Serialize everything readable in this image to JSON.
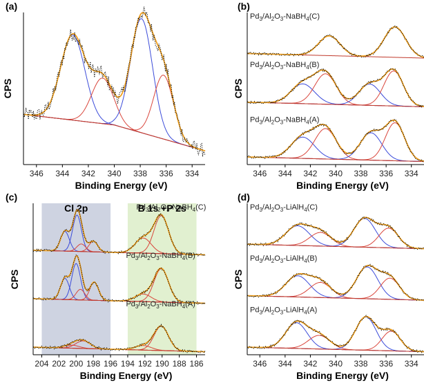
{
  "colors": {
    "data": "#000000",
    "envelope": "#f0a020",
    "baseline": "#c0392b",
    "peak_blue": "#3b4bd9",
    "peak_red": "#d9453b",
    "cl_region": "#c5cbdc",
    "bp_region": "#dcedc8"
  },
  "chart_data": [
    {
      "panel": "(a)",
      "type": "line",
      "xlabel": "Binding Energy (eV)",
      "ylabel": "CPS",
      "xlim": [
        347,
        333
      ],
      "xticks": [
        346,
        344,
        342,
        340,
        338,
        336,
        334
      ],
      "offset": 0,
      "baseline": [
        [
          347,
          0.33
        ],
        [
          340,
          0.26
        ],
        [
          333,
          0.09
        ]
      ],
      "peaks": [
        {
          "center": 343.2,
          "height": 0.56,
          "fwhm": 2.2,
          "color": "blue"
        },
        {
          "center": 340.9,
          "height": 0.3,
          "fwhm": 2.0,
          "color": "red"
        },
        {
          "center": 337.9,
          "height": 0.75,
          "fwhm": 2.0,
          "color": "blue"
        },
        {
          "center": 336.2,
          "height": 0.42,
          "fwhm": 1.8,
          "color": "red"
        }
      ]
    },
    {
      "panel": "(b)",
      "type": "line",
      "xlabel": "Binding Energy (eV)",
      "ylabel": "CPS",
      "xlim": [
        347,
        333
      ],
      "xticks": [
        346,
        344,
        342,
        340,
        338,
        336,
        334
      ],
      "series": [
        {
          "name": "Pd3/Al2O3-NaBH4(C)",
          "offset": 0.7,
          "peaks": [
            {
              "center": 340.5,
              "height": 0.13,
              "fwhm": 2.0,
              "color": "none"
            },
            {
              "center": 335.3,
              "height": 0.2,
              "fwhm": 2.0,
              "color": "none"
            }
          ]
        },
        {
          "name": "Pd3/Al2O3-NaBH4(B)",
          "offset": 0.38,
          "peaks": [
            {
              "center": 342.6,
              "height": 0.13,
              "fwhm": 2.2,
              "color": "blue"
            },
            {
              "center": 340.8,
              "height": 0.2,
              "fwhm": 2.0,
              "color": "red"
            },
            {
              "center": 337.3,
              "height": 0.14,
              "fwhm": 2.0,
              "color": "blue"
            },
            {
              "center": 335.4,
              "height": 0.23,
              "fwhm": 1.8,
              "color": "red"
            }
          ]
        },
        {
          "name": "Pd3/Al2O3-NaBH4(A)",
          "offset": 0.02,
          "peaks": [
            {
              "center": 342.6,
              "height": 0.14,
              "fwhm": 2.2,
              "color": "blue"
            },
            {
              "center": 340.8,
              "height": 0.2,
              "fwhm": 2.0,
              "color": "red"
            },
            {
              "center": 337.2,
              "height": 0.18,
              "fwhm": 2.0,
              "color": "blue"
            },
            {
              "center": 335.3,
              "height": 0.25,
              "fwhm": 1.8,
              "color": "red"
            }
          ]
        }
      ]
    },
    {
      "panel": "(c)",
      "type": "line",
      "xlabel": "Binding Energy (eV)",
      "ylabel": "CPS",
      "xlim": [
        205,
        185
      ],
      "xticks": [
        204,
        202,
        200,
        198,
        196,
        194,
        192,
        190,
        188,
        186
      ],
      "regions": [
        {
          "label": "Cl 2p",
          "from": 204,
          "to": 196,
          "color": "cl_region"
        },
        {
          "label": "B 1s +P 2s",
          "from": 194,
          "to": 186,
          "color": "bp_region"
        }
      ],
      "series": [
        {
          "name": "Pd3/Al2O3-NaBH4(C)",
          "offset": 0.66,
          "peaks": [
            {
              "center": 201.3,
              "height": 0.13,
              "fwhm": 1.2,
              "color": "blue"
            },
            {
              "center": 199.9,
              "height": 0.24,
              "fwhm": 1.2,
              "color": "blue"
            },
            {
              "center": 199.4,
              "height": 0.05,
              "fwhm": 1.2,
              "color": "red"
            },
            {
              "center": 198.0,
              "height": 0.07,
              "fwhm": 1.2,
              "color": "red"
            },
            {
              "center": 192.2,
              "height": 0.1,
              "fwhm": 2.2,
              "color": "red"
            },
            {
              "center": 190.1,
              "height": 0.25,
              "fwhm": 2.0,
              "color": "red"
            }
          ]
        },
        {
          "name": "Pd3/Al2O3-NaBH4(B)",
          "offset": 0.34,
          "peaks": [
            {
              "center": 201.3,
              "height": 0.14,
              "fwhm": 1.2,
              "color": "blue"
            },
            {
              "center": 200.0,
              "height": 0.24,
              "fwhm": 1.2,
              "color": "blue"
            },
            {
              "center": 199.5,
              "height": 0.07,
              "fwhm": 1.2,
              "color": "red"
            },
            {
              "center": 197.9,
              "height": 0.12,
              "fwhm": 1.2,
              "color": "red"
            },
            {
              "center": 192.2,
              "height": 0.05,
              "fwhm": 2.2,
              "color": "red"
            },
            {
              "center": 190.1,
              "height": 0.22,
              "fwhm": 2.0,
              "color": "red"
            }
          ]
        },
        {
          "name": "Pd3/Al2O3-NaBH4(A)",
          "offset": 0.02,
          "peaks": [
            {
              "center": 200.5,
              "height": 0.02,
              "fwhm": 2.0,
              "color": "red"
            },
            {
              "center": 199.2,
              "height": 0.05,
              "fwhm": 2.0,
              "color": "red"
            },
            {
              "center": 192.2,
              "height": 0.03,
              "fwhm": 2.2,
              "color": "red"
            },
            {
              "center": 190.1,
              "height": 0.16,
              "fwhm": 2.0,
              "color": "red"
            }
          ]
        }
      ]
    },
    {
      "panel": "(d)",
      "type": "line",
      "xlabel": "Binding Energy (eV)",
      "ylabel": "CPS",
      "xlim": [
        347,
        333
      ],
      "xticks": [
        346,
        344,
        342,
        340,
        338,
        336,
        334
      ],
      "series": [
        {
          "name": "Pd3/Al2O3-LiAlH4(C)",
          "offset": 0.7,
          "peaks": [
            {
              "center": 343.0,
              "height": 0.13,
              "fwhm": 2.2,
              "color": "blue"
            },
            {
              "center": 341.2,
              "height": 0.09,
              "fwhm": 2.0,
              "color": "red"
            },
            {
              "center": 337.7,
              "height": 0.19,
              "fwhm": 2.0,
              "color": "blue"
            },
            {
              "center": 335.8,
              "height": 0.13,
              "fwhm": 1.8,
              "color": "red"
            }
          ]
        },
        {
          "name": "Pd3/Al2O3-LiAlH4(B)",
          "offset": 0.36,
          "peaks": [
            {
              "center": 343.0,
              "height": 0.14,
              "fwhm": 2.2,
              "color": "blue"
            },
            {
              "center": 341.2,
              "height": 0.1,
              "fwhm": 2.0,
              "color": "red"
            },
            {
              "center": 337.5,
              "height": 0.21,
              "fwhm": 2.0,
              "color": "blue"
            },
            {
              "center": 335.7,
              "height": 0.14,
              "fwhm": 1.8,
              "color": "red"
            }
          ]
        },
        {
          "name": "Pd3/Al2O3-LiAlH4(A)",
          "offset": 0.02,
          "peaks": [
            {
              "center": 343.1,
              "height": 0.17,
              "fwhm": 2.0,
              "color": "blue"
            },
            {
              "center": 341.3,
              "height": 0.09,
              "fwhm": 2.0,
              "color": "red"
            },
            {
              "center": 337.6,
              "height": 0.22,
              "fwhm": 1.9,
              "color": "blue"
            },
            {
              "center": 335.6,
              "height": 0.13,
              "fwhm": 1.7,
              "color": "red"
            }
          ]
        }
      ]
    }
  ]
}
